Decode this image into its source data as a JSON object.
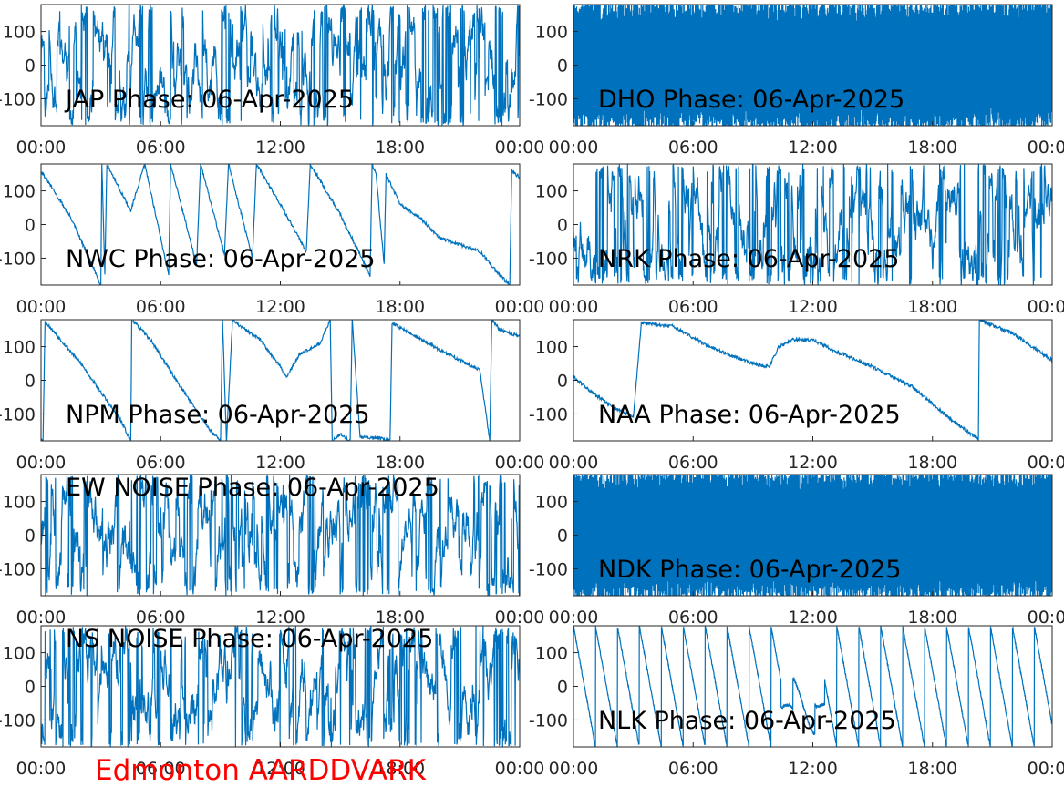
{
  "figure": {
    "footer_text": "Edmonton AARDDVARK",
    "footer_color": "#ff0000",
    "line_color": "#0072bd"
  },
  "chart_data": [
    {
      "type": "line",
      "title": "JAP Phase: 06-Apr-2025",
      "x_ticks": [
        "00:00",
        "06:00",
        "12:00",
        "18:00",
        "00:00"
      ],
      "y_ticks": [
        "100",
        "0",
        "-100"
      ],
      "xlim": [
        0,
        24
      ],
      "ylim": [
        -180,
        180
      ],
      "grid": false,
      "trace": "noise",
      "trace_seed": 11
    },
    {
      "type": "line",
      "title": "DHO Phase: 06-Apr-2025",
      "x_ticks": [
        "00:00",
        "06:00",
        "12:00",
        "18:00",
        "00:00"
      ],
      "y_ticks": [
        "100",
        "0",
        "-100"
      ],
      "xlim": [
        0,
        24
      ],
      "ylim": [
        -180,
        180
      ],
      "grid": false,
      "trace": "dense",
      "trace_seed": 23
    },
    {
      "type": "line",
      "title": "NWC Phase: 06-Apr-2025",
      "x_ticks": [
        "00:00",
        "06:00",
        "12:00",
        "18:00",
        "00:00"
      ],
      "y_ticks": [
        "100",
        "0",
        "-100"
      ],
      "xlim": [
        0,
        24
      ],
      "ylim": [
        -180,
        180
      ],
      "grid": false,
      "trace": "ramp",
      "trace_seed": 31,
      "points": [
        [
          0,
          160
        ],
        [
          1.5,
          20
        ],
        [
          3,
          -180
        ],
        [
          3.05,
          180
        ],
        [
          3.2,
          -150
        ],
        [
          3.3,
          180
        ],
        [
          4.5,
          40
        ],
        [
          5.2,
          180
        ],
        [
          6.4,
          -150
        ],
        [
          6.5,
          180
        ],
        [
          7.8,
          -120
        ],
        [
          8,
          180
        ],
        [
          9.2,
          -90
        ],
        [
          9.4,
          180
        ],
        [
          10.6,
          -100
        ],
        [
          10.8,
          180
        ],
        [
          11.2,
          140
        ],
        [
          12,
          60
        ],
        [
          13.3,
          -80
        ],
        [
          13.5,
          180
        ],
        [
          15,
          30
        ],
        [
          16.5,
          -150
        ],
        [
          16.6,
          180
        ],
        [
          16.8,
          150
        ],
        [
          17.2,
          -120
        ],
        [
          17.3,
          150
        ],
        [
          18,
          60
        ],
        [
          19,
          20
        ],
        [
          20,
          -40
        ],
        [
          21,
          -60
        ],
        [
          22,
          -80
        ],
        [
          23,
          -150
        ],
        [
          23.5,
          -180
        ],
        [
          23.6,
          160
        ],
        [
          24,
          140
        ]
      ]
    },
    {
      "type": "line",
      "title": "NRK Phase: 06-Apr-2025",
      "x_ticks": [
        "00:00",
        "06:00",
        "12:00",
        "18:00",
        "00:00"
      ],
      "y_ticks": [
        "100",
        "0",
        "-100"
      ],
      "xlim": [
        0,
        24
      ],
      "ylim": [
        -180,
        180
      ],
      "grid": false,
      "trace": "noise",
      "trace_seed": 47
    },
    {
      "type": "line",
      "title": "NPM Phase: 06-Apr-2025",
      "x_ticks": [
        "00:00",
        "06:00",
        "12:00",
        "18:00",
        "00:00"
      ],
      "y_ticks": [
        "100",
        "0",
        "-100"
      ],
      "xlim": [
        0,
        24
      ],
      "ylim": [
        -180,
        180
      ],
      "grid": false,
      "trace": "ramp",
      "trace_seed": 53,
      "points": [
        [
          0,
          -170
        ],
        [
          0.1,
          -180
        ],
        [
          0.2,
          175
        ],
        [
          2,
          50
        ],
        [
          4,
          -120
        ],
        [
          4.5,
          -180
        ],
        [
          4.55,
          180
        ],
        [
          5.5,
          120
        ],
        [
          7,
          -20
        ],
        [
          8.5,
          -150
        ],
        [
          9,
          -180
        ],
        [
          9.1,
          180
        ],
        [
          9.3,
          -180
        ],
        [
          9.6,
          180
        ],
        [
          10,
          160
        ],
        [
          11,
          120
        ],
        [
          12,
          40
        ],
        [
          12.3,
          10
        ],
        [
          13,
          80
        ],
        [
          14,
          110
        ],
        [
          14.5,
          180
        ],
        [
          14.6,
          -180
        ],
        [
          15,
          -160
        ],
        [
          15.5,
          -180
        ],
        [
          15.6,
          180
        ],
        [
          16,
          -170
        ],
        [
          17,
          -170
        ],
        [
          17.5,
          -180
        ],
        [
          17.6,
          170
        ],
        [
          20,
          90
        ],
        [
          22,
          30
        ],
        [
          22.5,
          -180
        ],
        [
          22.6,
          180
        ],
        [
          23,
          150
        ],
        [
          24,
          130
        ]
      ]
    },
    {
      "type": "line",
      "title": "NAA Phase: 06-Apr-2025",
      "x_ticks": [
        "00:00",
        "06:00",
        "12:00",
        "18:00",
        "00:00"
      ],
      "y_ticks": [
        "100",
        "0",
        "-100"
      ],
      "xlim": [
        0,
        24
      ],
      "ylim": [
        -180,
        180
      ],
      "grid": false,
      "trace": "ramp",
      "trace_seed": 61,
      "points": [
        [
          0,
          10
        ],
        [
          1,
          -40
        ],
        [
          2,
          -80
        ],
        [
          3,
          -110
        ],
        [
          3.4,
          170
        ],
        [
          5,
          160
        ],
        [
          6.5,
          110
        ],
        [
          8,
          70
        ],
        [
          9,
          50
        ],
        [
          9.8,
          40
        ],
        [
          10.3,
          100
        ],
        [
          11,
          120
        ],
        [
          12,
          120
        ],
        [
          13,
          90
        ],
        [
          15,
          40
        ],
        [
          17,
          -20
        ],
        [
          19,
          -120
        ],
        [
          20.3,
          -175
        ],
        [
          20.35,
          180
        ],
        [
          22,
          140
        ],
        [
          24,
          60
        ]
      ]
    },
    {
      "type": "line",
      "title": "EW NOISE Phase: 06-Apr-2025",
      "x_ticks": [
        "00:00",
        "06:00",
        "12:00",
        "18:00",
        "00:00"
      ],
      "y_ticks": [
        "100",
        "0",
        "-100"
      ],
      "xlim": [
        0,
        24
      ],
      "ylim": [
        -180,
        180
      ],
      "grid": false,
      "trace": "noise",
      "trace_seed": 71
    },
    {
      "type": "line",
      "title": "NDK Phase: 06-Apr-2025",
      "x_ticks": [
        "00:00",
        "06:00",
        "12:00",
        "18:00",
        "00:00"
      ],
      "y_ticks": [
        "100",
        "0",
        "-100"
      ],
      "xlim": [
        0,
        24
      ],
      "ylim": [
        -180,
        180
      ],
      "grid": false,
      "trace": "dense",
      "trace_seed": 83
    },
    {
      "type": "line",
      "title": "NS NOISE Phase: 06-Apr-2025",
      "x_ticks": [
        "00:00",
        "06:00",
        "12:00",
        "18:00",
        "00:00"
      ],
      "y_ticks": [
        "100",
        "0",
        "-100"
      ],
      "xlim": [
        0,
        24
      ],
      "ylim": [
        -180,
        180
      ],
      "grid": false,
      "trace": "noise",
      "trace_seed": 97
    },
    {
      "type": "line",
      "title": "NLK Phase: 06-Apr-2025",
      "x_ticks": [
        "00:00",
        "06:00",
        "12:00",
        "18:00",
        "00:00"
      ],
      "y_ticks": [
        "100",
        "0",
        "-100"
      ],
      "xlim": [
        0,
        24
      ],
      "ylim": [
        -180,
        180
      ],
      "grid": false,
      "trace": "sawtooth",
      "trace_seed": 101,
      "period_hours": 1.1
    }
  ]
}
